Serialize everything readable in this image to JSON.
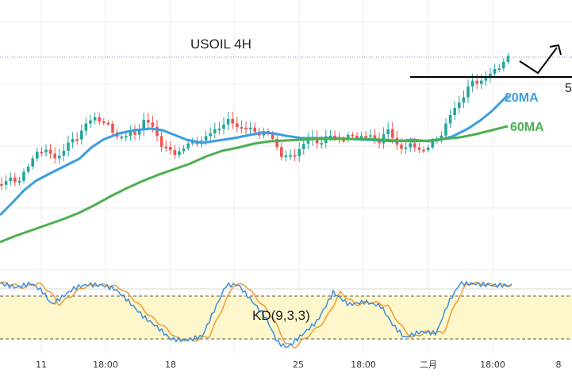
{
  "chart_data": [
    {
      "type": "candlestick",
      "title": "USOIL 4H",
      "series": [
        {
          "name": "20MA",
          "color": "#3a9ee0"
        },
        {
          "name": "60MA",
          "color": "#4caf50"
        }
      ],
      "price_label": "5",
      "x_ticks": [
        "11",
        "18:00",
        "18",
        "25",
        "18:00",
        "二月",
        "18:00",
        "8"
      ],
      "grid": true
    },
    {
      "type": "line",
      "title": "KD(9,3,3)",
      "series": [
        {
          "color": "#3b8ede"
        },
        {
          "color": "#f39a2c"
        }
      ],
      "band_color": "#fff7cc",
      "ylim": [
        0,
        100
      ],
      "levels": [
        80,
        20
      ]
    }
  ]
}
